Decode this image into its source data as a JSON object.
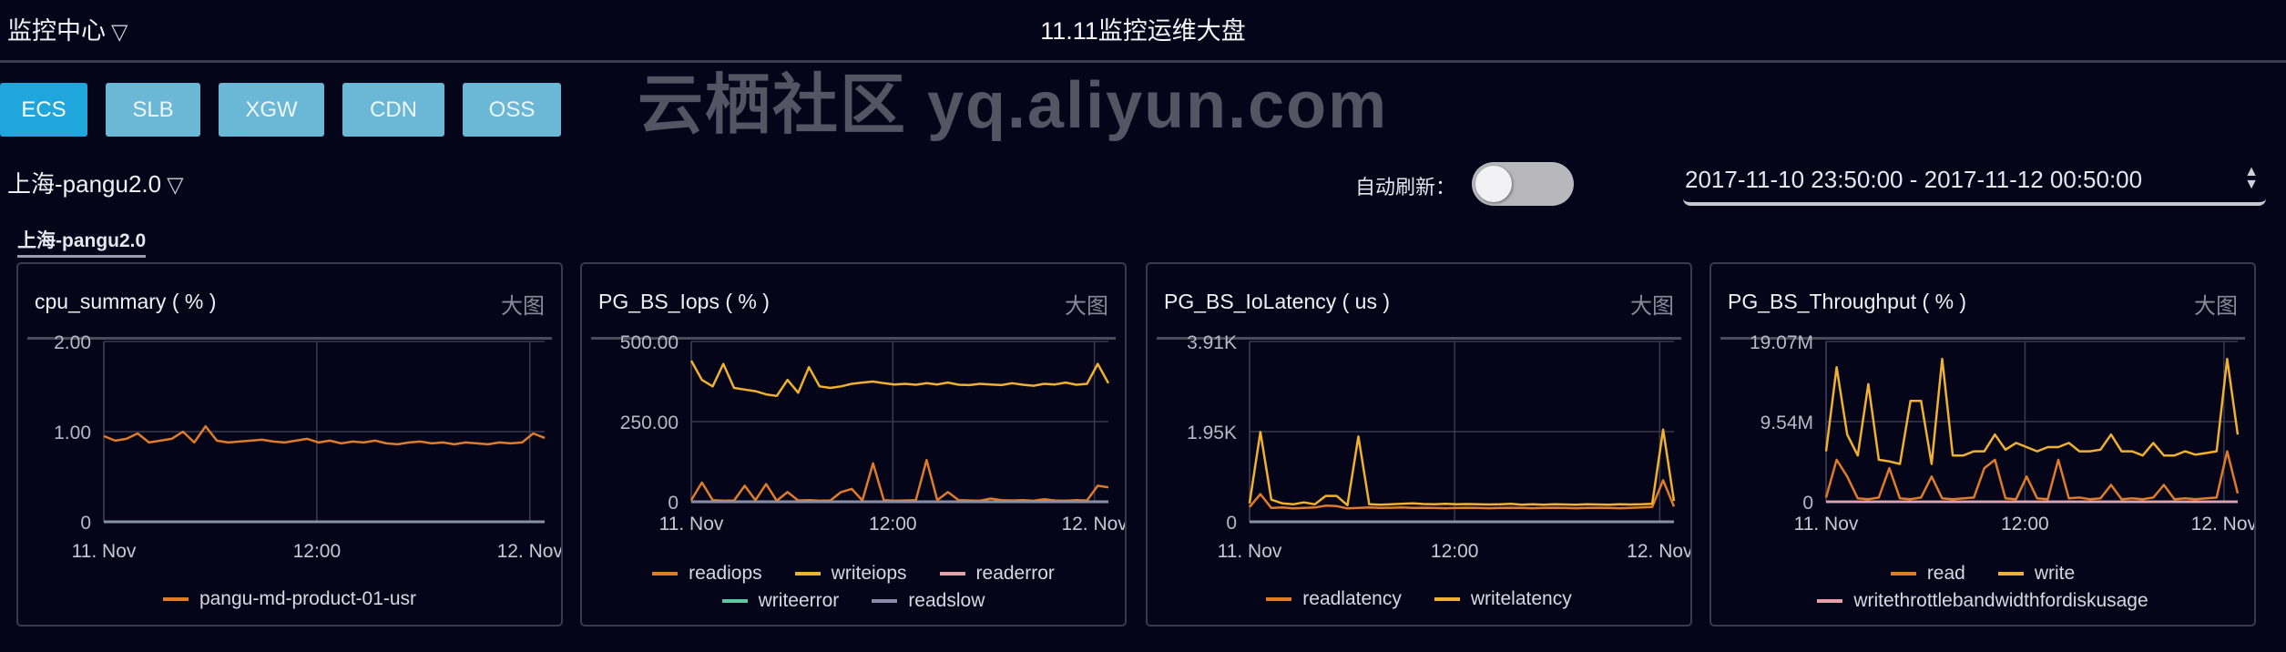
{
  "header": {
    "app_menu": "监控中心",
    "title": "11.11监控运维大盘"
  },
  "tabs": [
    {
      "label": "ECS",
      "active": true
    },
    {
      "label": "SLB",
      "active": false
    },
    {
      "label": "XGW",
      "active": false
    },
    {
      "label": "CDN",
      "active": false
    },
    {
      "label": "OSS",
      "active": false
    }
  ],
  "region": {
    "label": "上海-pangu2.0"
  },
  "auto_refresh": {
    "label": "自动刷新：",
    "enabled": false
  },
  "time_range": {
    "value": "2017-11-10 23:50:00 - 2017-11-12 00:50:00"
  },
  "section": {
    "label": "上海-pangu2.0"
  },
  "big_view_label": "大图",
  "colors": {
    "background": "#05051a",
    "tab_active": "#1fa6dc",
    "tab": "#6ab7d6"
  },
  "watermark": "云栖社区 yq.aliyun.com",
  "chart_data": [
    {
      "type": "line",
      "title": "cpu_summary ( % )",
      "x_range": [
        "2017-11-11 00:00",
        "2017-11-12 00:50"
      ],
      "x_ticks": [
        {
          "label": "11. Nov",
          "time": "2017-11-11 00:00"
        },
        {
          "label": "12:00",
          "time": "2017-11-11 12:00"
        },
        {
          "label": "12. Nov",
          "time": "2017-11-12 00:00"
        }
      ],
      "y_ticks": [
        "0",
        "1.00",
        "2.00"
      ],
      "ylim": [
        0,
        2
      ],
      "grid": true,
      "legend": "bottom",
      "series": [
        {
          "name": "pangu-md-product-01-usr",
          "color": "#e07b28",
          "values": [
            0.95,
            0.9,
            0.92,
            0.98,
            0.88,
            0.9,
            0.92,
            1.0,
            0.88,
            1.06,
            0.9,
            0.88,
            0.89,
            0.9,
            0.91,
            0.89,
            0.88,
            0.9,
            0.92,
            0.88,
            0.9,
            0.87,
            0.89,
            0.88,
            0.9,
            0.87,
            0.86,
            0.88,
            0.89,
            0.87,
            0.88,
            0.86,
            0.88,
            0.87,
            0.86,
            0.88,
            0.87,
            0.88,
            0.98,
            0.93
          ]
        }
      ]
    },
    {
      "type": "line",
      "title": "PG_BS_Iops ( % )",
      "x_range": [
        "2017-11-11 00:00",
        "2017-11-12 00:50"
      ],
      "x_ticks": [
        {
          "label": "11. Nov",
          "time": "2017-11-11 00:00"
        },
        {
          "label": "12:00",
          "time": "2017-11-11 12:00"
        },
        {
          "label": "12. Nov",
          "time": "2017-11-12 00:00"
        }
      ],
      "y_ticks": [
        "0",
        "250.00",
        "500.00"
      ],
      "ylim": [
        0,
        500
      ],
      "grid": true,
      "legend": "bottom",
      "series": [
        {
          "name": "readiops",
          "color": "#e07b28",
          "values": [
            5,
            60,
            5,
            3,
            4,
            50,
            5,
            55,
            3,
            30,
            4,
            5,
            3,
            4,
            30,
            40,
            4,
            120,
            5,
            3,
            4,
            5,
            130,
            5,
            30,
            5,
            4,
            3,
            10,
            5,
            4,
            5,
            3,
            8,
            4,
            3,
            5,
            4,
            50,
            45
          ]
        },
        {
          "name": "writeiops",
          "color": "#f0b030",
          "values": [
            440,
            380,
            360,
            430,
            355,
            350,
            345,
            335,
            330,
            380,
            340,
            420,
            360,
            355,
            360,
            368,
            372,
            375,
            370,
            366,
            368,
            365,
            370,
            366,
            372,
            365,
            364,
            368,
            366,
            364,
            370,
            365,
            362,
            368,
            366,
            372,
            365,
            368,
            430,
            370
          ]
        },
        {
          "name": "readerror",
          "color": "#e8a0a8",
          "values": [
            0,
            0,
            0,
            0,
            0,
            0,
            0,
            0,
            0,
            0,
            0,
            0,
            0,
            0,
            0,
            0,
            0,
            0,
            0,
            0,
            0,
            0,
            0,
            0,
            0,
            0,
            0,
            0,
            0,
            0,
            0,
            0,
            0,
            0,
            0,
            0,
            0,
            0,
            0,
            0
          ]
        },
        {
          "name": "writeerror",
          "color": "#5fc8a0",
          "values": [
            0,
            0,
            0,
            0,
            0,
            0,
            0,
            0,
            0,
            0,
            0,
            0,
            0,
            0,
            0,
            0,
            0,
            0,
            0,
            0,
            0,
            0,
            0,
            0,
            0,
            0,
            0,
            0,
            0,
            0,
            0,
            0,
            0,
            0,
            0,
            0,
            0,
            0,
            0,
            0
          ]
        },
        {
          "name": "readslow",
          "color": "#8a8aaa",
          "values": [
            0,
            0,
            0,
            0,
            0,
            0,
            0,
            0,
            0,
            0,
            0,
            0,
            0,
            0,
            0,
            0,
            0,
            0,
            0,
            0,
            0,
            0,
            0,
            0,
            0,
            0,
            0,
            0,
            0,
            0,
            0,
            0,
            0,
            0,
            0,
            0,
            0,
            0,
            0,
            0
          ]
        }
      ]
    },
    {
      "type": "line",
      "title": "PG_BS_IoLatency ( us )",
      "x_range": [
        "2017-11-11 00:00",
        "2017-11-12 00:50"
      ],
      "x_ticks": [
        {
          "label": "11. Nov",
          "time": "2017-11-11 00:00"
        },
        {
          "label": "12:00",
          "time": "2017-11-11 12:00"
        },
        {
          "label": "12. Nov",
          "time": "2017-11-12 00:00"
        }
      ],
      "y_ticks": [
        "0",
        "1.95K",
        "3.91K"
      ],
      "ylim": [
        0,
        3910
      ],
      "grid": true,
      "legend": "bottom",
      "series": [
        {
          "name": "readlatency",
          "color": "#e07b28",
          "values": [
            320,
            600,
            300,
            310,
            290,
            300,
            310,
            350,
            340,
            290,
            300,
            310,
            300,
            305,
            310,
            300,
            305,
            300,
            295,
            300,
            305,
            300,
            295,
            300,
            305,
            300,
            295,
            300,
            305,
            300,
            295,
            300,
            305,
            300,
            295,
            300,
            310,
            320,
            900,
            330
          ]
        },
        {
          "name": "writelatency",
          "color": "#f0b030",
          "values": [
            400,
            1950,
            480,
            400,
            380,
            420,
            380,
            560,
            560,
            360,
            1850,
            380,
            370,
            380,
            390,
            400,
            385,
            380,
            390,
            380,
            385,
            380,
            375,
            380,
            390,
            370,
            380,
            370,
            380,
            375,
            370,
            380,
            375,
            370,
            380,
            375,
            380,
            390,
            2000,
            450
          ]
        }
      ]
    },
    {
      "type": "line",
      "title": "PG_BS_Throughput ( % )",
      "x_range": [
        "2017-11-11 00:00",
        "2017-11-12 00:50"
      ],
      "x_ticks": [
        {
          "label": "11. Nov",
          "time": "2017-11-11 00:00"
        },
        {
          "label": "12:00",
          "time": "2017-11-11 12:00"
        },
        {
          "label": "12. Nov",
          "time": "2017-11-12 00:00"
        }
      ],
      "y_ticks": [
        "0",
        "9.54M",
        "19.07M"
      ],
      "ylim": [
        0,
        19070000
      ],
      "grid": true,
      "legend": "bottom",
      "series": [
        {
          "name": "read",
          "color": "#e07b28",
          "values": [
            500000,
            5000000,
            3000000,
            400000,
            300000,
            500000,
            4000000,
            400000,
            300000,
            500000,
            3000000,
            400000,
            300000,
            400000,
            500000,
            4000000,
            5000000,
            400000,
            300000,
            3000000,
            400000,
            300000,
            5000000,
            400000,
            500000,
            300000,
            400000,
            2000000,
            300000,
            400000,
            300000,
            500000,
            2000000,
            300000,
            400000,
            300000,
            400000,
            500000,
            6000000,
            1000000
          ]
        },
        {
          "name": "write",
          "color": "#f0b030",
          "values": [
            6000000,
            16000000,
            8000000,
            5500000,
            14000000,
            5000000,
            4800000,
            4500000,
            12000000,
            12000000,
            4500000,
            17000000,
            5500000,
            5500000,
            6000000,
            6000000,
            8000000,
            6200000,
            7000000,
            6500000,
            6000000,
            6500000,
            6500000,
            7000000,
            6000000,
            6000000,
            6200000,
            8000000,
            6000000,
            6000000,
            5500000,
            7000000,
            5500000,
            5500000,
            6000000,
            5600000,
            5800000,
            6000000,
            17000000,
            8000000
          ]
        },
        {
          "name": "writethrottlebandwidthfordiskusage",
          "color": "#e8a0a8",
          "values": [
            0,
            0,
            0,
            0,
            0,
            0,
            0,
            0,
            0,
            0,
            0,
            0,
            0,
            0,
            0,
            0,
            0,
            0,
            0,
            0,
            0,
            0,
            0,
            0,
            0,
            0,
            0,
            0,
            0,
            0,
            0,
            0,
            0,
            0,
            0,
            0,
            0,
            0,
            0,
            0
          ]
        }
      ]
    }
  ]
}
